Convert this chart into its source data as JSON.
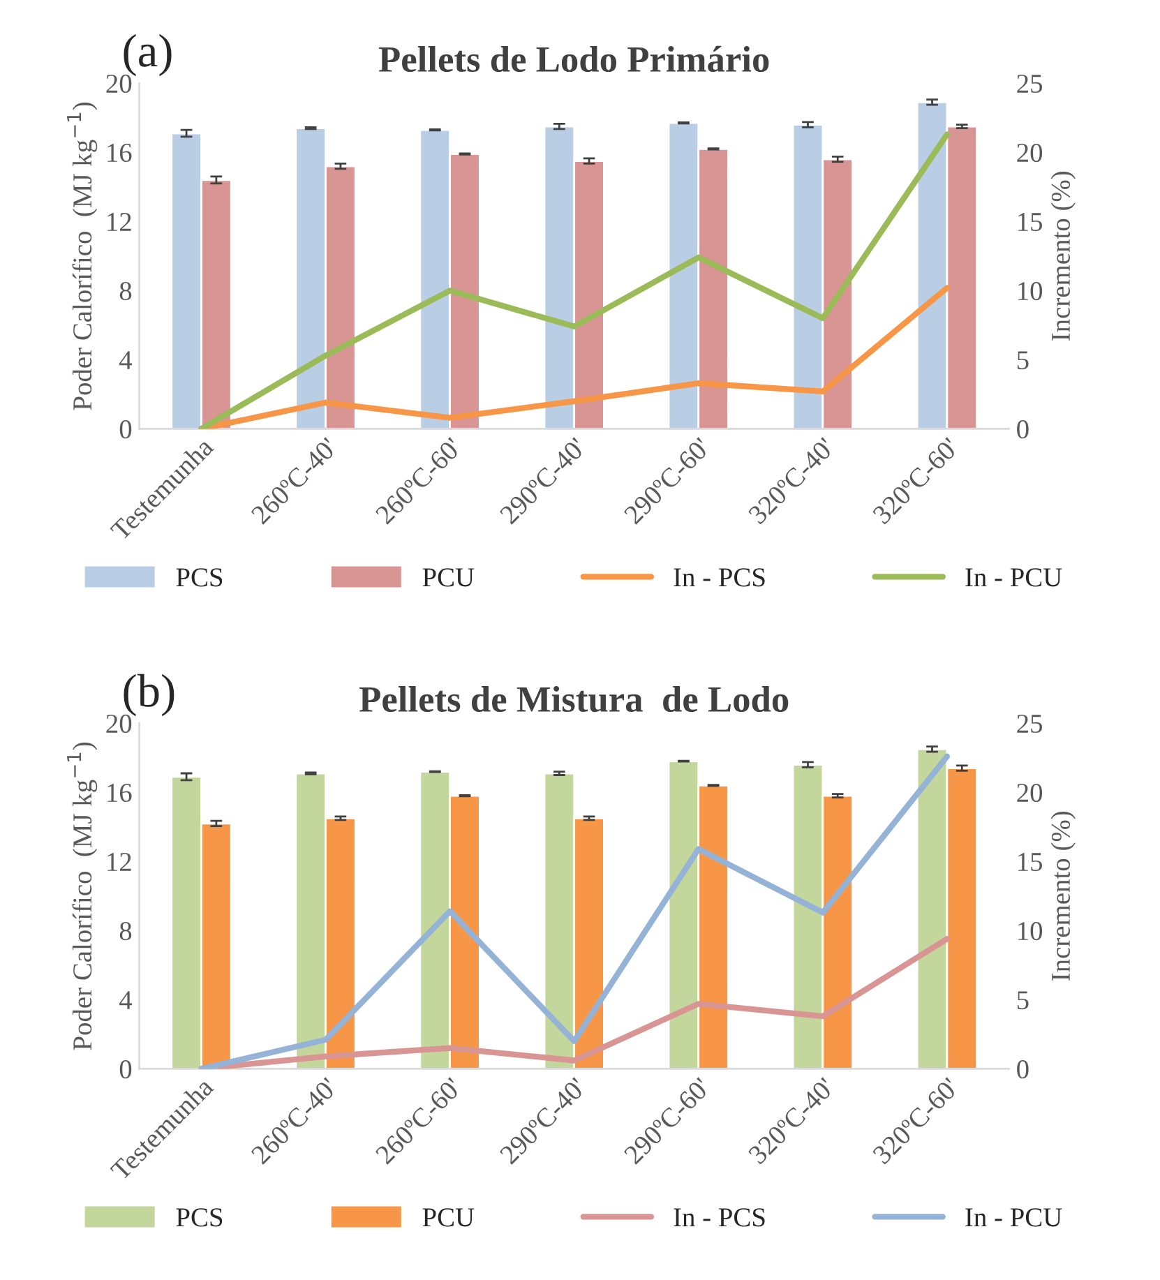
{
  "chart_data": [
    {
      "type": "bar",
      "title": "Pellets de Lodo Primário",
      "ylabel": "Poder Calorífico  (MJ kg$^{−1}$)",
      "y2label": "Incremento (%)",
      "annotations": [
        "(a)"
      ],
      "categories": [
        "Testemunha",
        "260ºC-40'",
        "260ºC-60'",
        "290ºC-40'",
        "290ºC-60'",
        "320ºC-40'",
        "320ºC-60'"
      ],
      "series": [
        {
          "name": "PCS",
          "color": "#b9cde5",
          "values": [
            17.1,
            17.4,
            17.3,
            17.5,
            17.7,
            17.6,
            18.9
          ],
          "errors": [
            0.2,
            0.05,
            0.03,
            0.15,
            0.03,
            0.15,
            0.15
          ]
        },
        {
          "name": "PCU",
          "color": "#d99594",
          "values": [
            14.4,
            15.2,
            15.9,
            15.5,
            16.2,
            15.6,
            17.5
          ],
          "errors": [
            0.2,
            0.15,
            0.03,
            0.15,
            0.03,
            0.15,
            0.1
          ]
        },
        {
          "name": "In - PCS",
          "type": "line",
          "axis": "y2",
          "color": "#f79646",
          "values": [
            0,
            1.9,
            0.8,
            2.0,
            3.3,
            2.7,
            10.2
          ]
        },
        {
          "name": "In - PCU",
          "type": "line",
          "axis": "y2",
          "color": "#9bbb59",
          "values": [
            0,
            5.3,
            10.0,
            7.4,
            12.4,
            8.0,
            21.3
          ]
        }
      ],
      "ylim": [
        0,
        20
      ],
      "yticks": [
        0,
        4,
        8,
        12,
        16,
        20
      ],
      "y2lim": [
        0,
        25
      ],
      "y2ticks": [
        0,
        5,
        10,
        15,
        20,
        25
      ],
      "legend": "bottom",
      "grid": false
    },
    {
      "type": "bar",
      "title": "Pellets de Mistura  de Lodo",
      "ylabel": "Poder Calorífico  (MJ kg$^{−1}$)",
      "y2label": "Incremento (%)",
      "annotations": [
        "(b)"
      ],
      "categories": [
        "Testemunha",
        "260ºC-40'",
        "260ºC-60'",
        "290ºC-40'",
        "290ºC-60'",
        "320ºC-40'",
        "320ºC-60'"
      ],
      "series": [
        {
          "name": "PCS",
          "color": "#c3d69b",
          "values": [
            16.9,
            17.1,
            17.2,
            17.1,
            17.8,
            17.6,
            18.5
          ],
          "errors": [
            0.2,
            0.05,
            0.02,
            0.1,
            0.02,
            0.15,
            0.15
          ]
        },
        {
          "name": "PCU",
          "color": "#f79646",
          "values": [
            14.2,
            14.5,
            15.8,
            14.5,
            16.4,
            15.8,
            17.4
          ],
          "errors": [
            0.15,
            0.1,
            0.03,
            0.1,
            0.03,
            0.1,
            0.15
          ]
        },
        {
          "name": "In - PCS",
          "type": "line",
          "axis": "y2",
          "color": "#d99594",
          "values": [
            0,
            0.9,
            1.5,
            0.6,
            4.7,
            3.8,
            9.4
          ]
        },
        {
          "name": "In - PCU",
          "type": "line",
          "axis": "y2",
          "color": "#95b3d7",
          "values": [
            0,
            2.1,
            11.4,
            2.0,
            15.9,
            11.3,
            22.6
          ]
        }
      ],
      "ylim": [
        0,
        20
      ],
      "yticks": [
        0,
        4,
        8,
        12,
        16,
        20
      ],
      "y2lim": [
        0,
        25
      ],
      "y2ticks": [
        0,
        5,
        10,
        15,
        20,
        25
      ],
      "legend": "bottom",
      "grid": false
    }
  ]
}
